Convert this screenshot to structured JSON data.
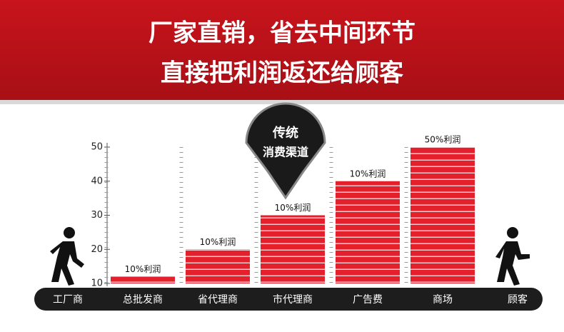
{
  "chart_data": {
    "type": "bar",
    "title": "厂家直销，省去中间环节",
    "subtitle": "直接把利润返还给顾客",
    "annotations": [
      "传统",
      "消费渠道"
    ],
    "categories": [
      "工厂商",
      "总批发商",
      "省代理商",
      "市代理商",
      "广告费",
      "商场",
      "顾客"
    ],
    "values": [
      null,
      12,
      20,
      30,
      40,
      50,
      null
    ],
    "value_labels": [
      null,
      "10%利润",
      "10%利润",
      "10%利润",
      "10%利润",
      "50%利润",
      null
    ],
    "color": "#e4202c",
    "ylim": [
      10,
      50
    ],
    "yticks": [
      10,
      20,
      30,
      40,
      50
    ],
    "grid": false
  }
}
